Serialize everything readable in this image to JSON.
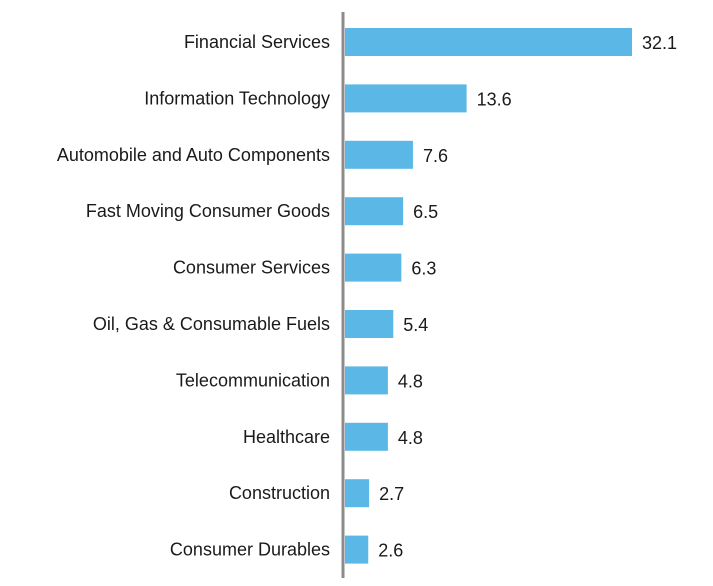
{
  "chart_data": {
    "type": "bar",
    "orientation": "horizontal",
    "categories": [
      "Financial Services",
      "Information Technology",
      "Automobile and Auto Components",
      "Fast Moving Consumer Goods",
      "Consumer Services",
      "Oil, Gas & Consumable Fuels",
      "Telecommunication",
      "Healthcare",
      "Construction",
      "Consumer Durables"
    ],
    "values": [
      32.1,
      13.6,
      7.6,
      6.5,
      6.3,
      5.4,
      4.8,
      4.8,
      2.7,
      2.6
    ],
    "value_labels": [
      "32.1",
      "13.6",
      "7.6",
      "6.5",
      "6.3",
      "5.4",
      "4.8",
      "4.8",
      "2.7",
      "2.6"
    ],
    "title": "",
    "xlabel": "",
    "ylabel": "",
    "xlim": [
      0,
      32.1
    ],
    "grid": false,
    "legend": "none",
    "colors": {
      "bar": "#5bb8e6",
      "axis": "#8c8c8c",
      "text": "#1a1a1a"
    }
  }
}
